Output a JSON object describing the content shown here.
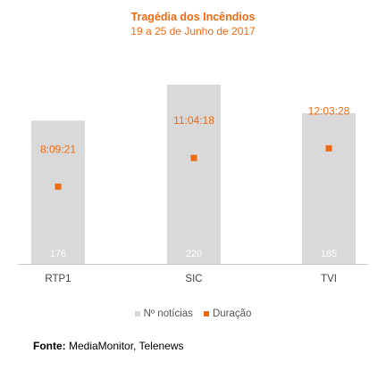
{
  "chart_data": {
    "type": "bar",
    "title": "Tragédia dos Incêndios",
    "subtitle": "19 a 25 de Junho de 2017",
    "categories": [
      "RTP1",
      "SIC",
      "TVI"
    ],
    "series": [
      {
        "name": "Nº notícias",
        "kind": "bar",
        "color": "#d9d9d9",
        "values": [
          176,
          220,
          185
        ],
        "labels": [
          "176",
          "220",
          "185"
        ]
      },
      {
        "name": "Duração",
        "kind": "point",
        "color": "#ee6a12",
        "values": [
          8.1558,
          11.0717,
          12.0578
        ],
        "labels": [
          "8:09:21",
          "11:04:18",
          "12:03:28"
        ]
      }
    ],
    "legend_position": "bottom",
    "grid": false
  },
  "source": {
    "label": "Fonte:",
    "text": "MediaMonitor, Telenews"
  }
}
